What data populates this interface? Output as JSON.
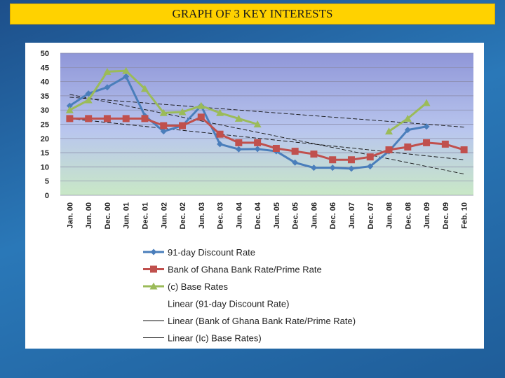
{
  "title": "GRAPH OF 3 KEY INTERESTS",
  "chart_data": {
    "type": "line",
    "title": "GRAPH OF 3 KEY INTERESTS",
    "categories": [
      "Jan. 00",
      "Jun. 00",
      "Dec. 00",
      "Jun. 01",
      "Dec. 01",
      "Jun. 02",
      "Dec. 02",
      "Jun. 03",
      "Dec. 03",
      "Jun. 04",
      "Dec. 04",
      "Jun. 05",
      "Dec. 05",
      "Jun. 06",
      "Dec. 06",
      "Jun. 07",
      "Dec. 07",
      "Jun. 08",
      "Dec. 08",
      "Jun. 09",
      "Dec. 09",
      "Feb. 10"
    ],
    "ylim": [
      0,
      50
    ],
    "yticks": [
      0,
      5,
      10,
      15,
      20,
      25,
      30,
      35,
      40,
      45,
      50
    ],
    "grid": true,
    "legend_position": "bottom",
    "series": [
      {
        "name": "91-day Discount Rate",
        "color": "#4a7ebb",
        "marker": "diamond",
        "values": [
          31.5,
          35.8,
          38,
          41.8,
          28,
          22.5,
          24.5,
          31.5,
          18,
          16.2,
          16.3,
          15.5,
          11.5,
          9.7,
          9.7,
          9.4,
          10.2,
          15.5,
          23,
          24.2,
          null,
          null
        ]
      },
      {
        "name": "Bank of Ghana Bank Rate/Prime Rate",
        "color": "#c0504d",
        "marker": "square",
        "values": [
          27,
          27,
          27,
          27,
          27,
          24.5,
          24.5,
          27.5,
          21.5,
          18.5,
          18.5,
          16.5,
          15.5,
          14.5,
          12.5,
          12.5,
          13.5,
          16,
          17,
          18.5,
          18,
          16
        ]
      },
      {
        "name": "(c) Base Rates",
        "color": "#9bbb59",
        "marker": "triangle",
        "values": [
          30,
          33.5,
          43.5,
          43.8,
          37.5,
          29,
          29.3,
          31.5,
          29,
          27,
          25,
          null,
          null,
          null,
          null,
          null,
          null,
          22.5,
          27,
          32.5,
          null,
          null
        ]
      }
    ],
    "trendlines": [
      {
        "name": "Linear (91-day Discount Rate)",
        "start": [
          0,
          35.5
        ],
        "end": [
          21,
          7.5
        ]
      },
      {
        "name": "Linear (Bank of Ghana Bank Rate/Prime Rate)",
        "start": [
          0,
          27
        ],
        "end": [
          21,
          12.5
        ]
      },
      {
        "name": "Linear (Ic) Base Rates)",
        "start": [
          0,
          34.5
        ],
        "end": [
          21,
          24
        ]
      }
    ]
  }
}
